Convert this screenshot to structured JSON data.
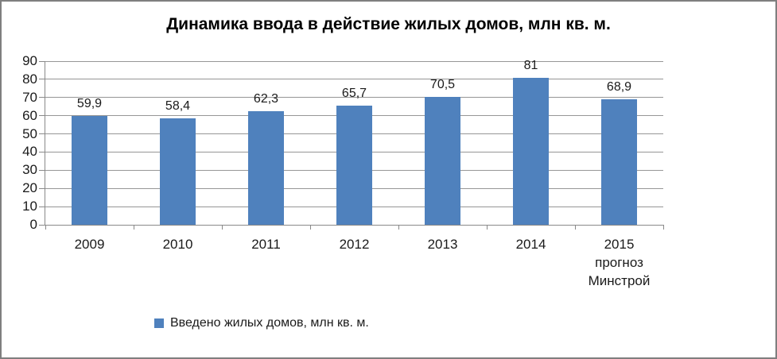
{
  "chart_data": {
    "type": "bar",
    "title": "Динамика ввода в действие жилых домов, млн кв. м.",
    "categories": [
      "2009",
      "2010",
      "2011",
      "2012",
      "2013",
      "2014",
      "2015\nпрогноз\nМинстрой"
    ],
    "values": [
      59.9,
      58.4,
      62.3,
      65.7,
      70.5,
      81,
      68.9
    ],
    "value_labels": [
      "59,9",
      "58,4",
      "62,3",
      "65,7",
      "70,5",
      "81",
      "68,9"
    ],
    "legend": "Введено жилых домов, млн кв. м.",
    "legend_position": "bottom",
    "xlabel": "",
    "ylabel": "",
    "ylim": [
      0,
      90
    ],
    "ytick_step": 10,
    "grid": true,
    "bar_color": "#4F81BD",
    "gridline_color": "#969696",
    "axis_color": "#898989",
    "text_color": "#1a1a1a",
    "border_color": "#7f7f7f"
  }
}
